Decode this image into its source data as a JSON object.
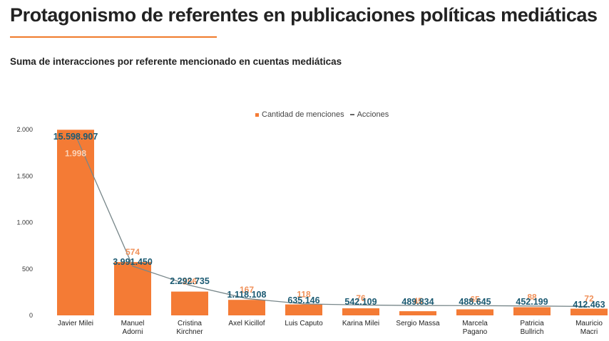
{
  "header": {
    "title": "Protagonismo de referentes en publicaciones políticas mediáticas",
    "subtitle": "Suma de interacciones por referente mencionado en cuentas mediáticas"
  },
  "legend": {
    "bars_label": "Cantidad de menciones",
    "line_label": "Acciones"
  },
  "colors": {
    "bar": "#f47b35",
    "line": "#78878a",
    "bar_label": "#f0915a",
    "line_label": "#1b5a72",
    "accent": "#f07a2a"
  },
  "chart_data": {
    "type": "bar",
    "title": "Suma de interacciones por referente mencionado en cuentas mediáticas",
    "categories": [
      "Javier Milei",
      "Manuel Adorni",
      "Cristina Kirchner",
      "Axel Kicillof",
      "Luis Caputo",
      "Karina Milei",
      "Sergio Massa",
      "Marcela Pagano",
      "Patricia Bullrich",
      "Mauricio Macri"
    ],
    "category_lines": [
      [
        "Javier Milei"
      ],
      [
        "Manuel",
        "Adorni"
      ],
      [
        "Cristina",
        "Kirchner"
      ],
      [
        "Axel Kicillof"
      ],
      [
        "Luis Caputo"
      ],
      [
        "Karina Milei"
      ],
      [
        "Sergio Massa"
      ],
      [
        "Marcela",
        "Pagano"
      ],
      [
        "Patricia",
        "Bullrich"
      ],
      [
        "Mauricio",
        "Macri"
      ]
    ],
    "series": [
      {
        "name": "Cantidad de menciones",
        "type": "bar",
        "values": [
          1998,
          574,
          256,
          167,
          118,
          76,
          45,
          65,
          88,
          72
        ],
        "labels": [
          "1.998",
          "574",
          "256",
          "167",
          "118",
          "76",
          "45",
          "65",
          "88",
          "72"
        ]
      },
      {
        "name": "Acciones",
        "type": "line",
        "values": [
          15598907,
          3991450,
          2292735,
          1118108,
          635146,
          542109,
          489834,
          488645,
          452199,
          412463
        ],
        "labels": [
          "15.598.907",
          "3.991.450",
          "2.292.735",
          "1.118.108",
          "635.146",
          "542.109",
          "489.834",
          "488.645",
          "452.199",
          "412.463"
        ]
      }
    ],
    "ylim": [
      0,
      2000
    ],
    "yticks": [
      0,
      500,
      1000,
      1500,
      2000
    ],
    "ytick_labels": [
      "0",
      "500",
      "1.000",
      "1.500",
      "2.000"
    ],
    "legend_position": "top-center",
    "grid": false
  }
}
